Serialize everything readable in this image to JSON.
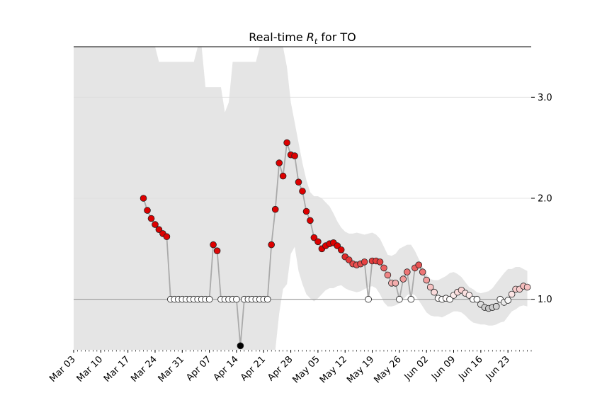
{
  "chart_data": {
    "type": "scatter",
    "title_main": "Real-time ",
    "title_symbol": "R",
    "title_subscript": "t",
    "title_suffix": " for TO",
    "xlabel": "",
    "ylabel": "",
    "ylim": [
      0.5,
      3.5
    ],
    "y_ticks": [
      1.0,
      2.0,
      3.0
    ],
    "y_tick_labels": [
      "1.0",
      "2.0",
      "3.0"
    ],
    "y_axis_position": "right",
    "grid": "horizontal",
    "reference_line": 1.0,
    "x_start": "2020-03-03",
    "x_end": "2020-06-29",
    "x_tick_labels": [
      "Mar 03",
      "Mar 10",
      "Mar 17",
      "Mar 24",
      "Mar 31",
      "Apr 07",
      "Apr 14",
      "Apr 21",
      "Apr 28",
      "May 05",
      "May 12",
      "May 19",
      "May 26",
      "Jun 02",
      "Jun 09",
      "Jun 16",
      "Jun 23"
    ],
    "x_tick_dates": [
      "2020-03-03",
      "2020-03-10",
      "2020-03-17",
      "2020-03-24",
      "2020-03-31",
      "2020-04-07",
      "2020-04-14",
      "2020-04-21",
      "2020-04-28",
      "2020-05-05",
      "2020-05-12",
      "2020-05-19",
      "2020-05-26",
      "2020-06-02",
      "2020-06-09",
      "2020-06-16",
      "2020-06-23"
    ],
    "colors": {
      "band": "#e5e5e5",
      "line": "#aaaaaa",
      "high": "#dd0000",
      "neutral": "#ffffff",
      "low": "#000000",
      "grid": "#dddddd",
      "reference": "#999999"
    },
    "series": [
      {
        "start_date": "2020-03-21",
        "values": [
          2.0,
          1.88,
          1.8,
          1.74,
          1.69,
          1.65,
          1.62,
          1.0,
          1.0,
          1.0,
          1.0,
          1.0,
          1.0,
          1.0,
          1.0,
          1.0,
          1.0,
          1.0,
          1.54,
          1.48,
          1.0,
          1.0,
          1.0,
          1.0,
          1.0,
          0.54,
          1.0,
          1.0,
          1.0,
          1.0,
          1.0,
          1.0,
          1.0,
          1.54,
          1.89,
          2.35,
          2.22,
          2.55,
          2.43,
          2.42,
          2.16,
          2.07,
          1.87,
          1.78,
          1.61,
          1.57,
          1.5,
          1.53,
          1.55,
          1.56,
          1.53,
          1.49,
          1.42,
          1.39,
          1.35,
          1.34,
          1.35,
          1.37,
          1.0,
          1.38,
          1.38,
          1.37,
          1.31,
          1.24,
          1.16,
          1.16,
          1.0,
          1.2,
          1.27,
          1.0,
          1.31,
          1.34,
          1.27,
          1.19,
          1.12,
          1.07,
          1.01,
          1.0,
          1.01,
          1.0,
          1.04,
          1.07,
          1.09,
          1.06,
          1.04,
          1.0,
          1.0,
          0.95,
          0.92,
          0.91,
          0.92,
          0.93,
          1.0,
          0.97,
          0.99,
          1.05,
          1.1,
          1.1,
          1.13,
          1.12
        ],
        "colors_scale": "diverging",
        "gaps_before": []
      }
    ],
    "band_upper": [
      [
        "2020-03-03",
        3.5
      ],
      [
        "2020-03-24",
        3.5
      ],
      [
        "2020-03-25",
        3.35
      ],
      [
        "2020-04-03",
        3.35
      ],
      [
        "2020-04-04",
        3.5
      ],
      [
        "2020-04-05",
        3.5
      ],
      [
        "2020-04-06",
        3.1
      ],
      [
        "2020-04-10",
        3.1
      ],
      [
        "2020-04-11",
        2.85
      ],
      [
        "2020-04-12",
        2.95
      ],
      [
        "2020-04-13",
        3.35
      ],
      [
        "2020-04-19",
        3.35
      ],
      [
        "2020-04-20",
        3.5
      ],
      [
        "2020-04-26",
        3.5
      ],
      [
        "2020-04-27",
        3.3
      ],
      [
        "2020-04-28",
        2.95
      ],
      [
        "2020-04-29",
        2.75
      ],
      [
        "2020-04-30",
        2.55
      ],
      [
        "2020-05-01",
        2.35
      ],
      [
        "2020-05-02",
        2.18
      ],
      [
        "2020-05-03",
        2.06
      ],
      [
        "2020-05-04",
        2.02
      ],
      [
        "2020-05-05",
        2.02
      ],
      [
        "2020-05-06",
        2.0
      ],
      [
        "2020-05-07",
        1.96
      ],
      [
        "2020-05-08",
        1.92
      ],
      [
        "2020-05-09",
        1.85
      ],
      [
        "2020-05-10",
        1.77
      ],
      [
        "2020-05-11",
        1.71
      ],
      [
        "2020-05-12",
        1.67
      ],
      [
        "2020-05-13",
        1.65
      ],
      [
        "2020-05-14",
        1.65
      ],
      [
        "2020-05-15",
        1.66
      ],
      [
        "2020-05-16",
        1.65
      ],
      [
        "2020-05-17",
        1.64
      ],
      [
        "2020-05-18",
        1.65
      ],
      [
        "2020-05-19",
        1.66
      ],
      [
        "2020-05-20",
        1.64
      ],
      [
        "2020-05-21",
        1.6
      ],
      [
        "2020-05-22",
        1.52
      ],
      [
        "2020-05-23",
        1.44
      ],
      [
        "2020-05-24",
        1.43
      ],
      [
        "2020-05-25",
        1.45
      ],
      [
        "2020-05-26",
        1.5
      ],
      [
        "2020-05-27",
        1.52
      ],
      [
        "2020-05-28",
        1.54
      ],
      [
        "2020-05-29",
        1.54
      ],
      [
        "2020-05-30",
        1.48
      ],
      [
        "2020-05-31",
        1.4
      ],
      [
        "2020-06-01",
        1.32
      ],
      [
        "2020-06-02",
        1.25
      ],
      [
        "2020-06-03",
        1.2
      ],
      [
        "2020-06-04",
        1.19
      ],
      [
        "2020-06-05",
        1.19
      ],
      [
        "2020-06-06",
        1.21
      ],
      [
        "2020-06-07",
        1.23
      ],
      [
        "2020-06-08",
        1.26
      ],
      [
        "2020-06-09",
        1.27
      ],
      [
        "2020-06-10",
        1.25
      ],
      [
        "2020-06-11",
        1.22
      ],
      [
        "2020-06-12",
        1.17
      ],
      [
        "2020-06-13",
        1.12
      ],
      [
        "2020-06-14",
        1.1
      ],
      [
        "2020-06-15",
        1.07
      ],
      [
        "2020-06-16",
        1.06
      ],
      [
        "2020-06-17",
        1.07
      ],
      [
        "2020-06-18",
        1.08
      ],
      [
        "2020-06-19",
        1.11
      ],
      [
        "2020-06-20",
        1.16
      ],
      [
        "2020-06-21",
        1.21
      ],
      [
        "2020-06-22",
        1.26
      ],
      [
        "2020-06-23",
        1.3
      ],
      [
        "2020-06-24",
        1.3
      ],
      [
        "2020-06-25",
        1.32
      ],
      [
        "2020-06-26",
        1.32
      ],
      [
        "2020-06-27",
        1.3
      ],
      [
        "2020-06-28",
        1.28
      ]
    ],
    "band_lower": [
      [
        "2020-03-03",
        0.5
      ],
      [
        "2020-04-24",
        0.5
      ],
      [
        "2020-04-25",
        0.86
      ],
      [
        "2020-04-26",
        1.1
      ],
      [
        "2020-04-27",
        1.15
      ],
      [
        "2020-04-28",
        1.45
      ],
      [
        "2020-04-29",
        1.52
      ],
      [
        "2020-04-30",
        1.28
      ],
      [
        "2020-05-01",
        1.15
      ],
      [
        "2020-05-02",
        1.05
      ],
      [
        "2020-05-03",
        1.01
      ],
      [
        "2020-05-04",
        0.98
      ],
      [
        "2020-05-05",
        1.01
      ],
      [
        "2020-05-06",
        1.05
      ],
      [
        "2020-05-07",
        1.09
      ],
      [
        "2020-05-08",
        1.11
      ],
      [
        "2020-05-09",
        1.11
      ],
      [
        "2020-05-10",
        1.13
      ],
      [
        "2020-05-11",
        1.14
      ],
      [
        "2020-05-12",
        1.11
      ],
      [
        "2020-05-13",
        1.09
      ],
      [
        "2020-05-14",
        1.08
      ],
      [
        "2020-05-15",
        1.07
      ],
      [
        "2020-05-16",
        1.08
      ],
      [
        "2020-05-17",
        1.1
      ],
      [
        "2020-05-18",
        1.12
      ],
      [
        "2020-05-19",
        1.13
      ],
      [
        "2020-05-20",
        1.11
      ],
      [
        "2020-05-21",
        1.05
      ],
      [
        "2020-05-22",
        0.97
      ],
      [
        "2020-05-23",
        0.93
      ],
      [
        "2020-05-24",
        0.93
      ],
      [
        "2020-05-25",
        0.94
      ],
      [
        "2020-05-26",
        0.96
      ],
      [
        "2020-05-27",
        1.0
      ],
      [
        "2020-05-28",
        1.04
      ],
      [
        "2020-05-29",
        1.06
      ],
      [
        "2020-05-30",
        1.04
      ],
      [
        "2020-05-31",
        0.99
      ],
      [
        "2020-06-01",
        0.93
      ],
      [
        "2020-06-02",
        0.87
      ],
      [
        "2020-06-03",
        0.84
      ],
      [
        "2020-06-04",
        0.83
      ],
      [
        "2020-06-05",
        0.83
      ],
      [
        "2020-06-06",
        0.82
      ],
      [
        "2020-06-07",
        0.84
      ],
      [
        "2020-06-08",
        0.86
      ],
      [
        "2020-06-09",
        0.88
      ],
      [
        "2020-06-10",
        0.88
      ],
      [
        "2020-06-11",
        0.87
      ],
      [
        "2020-06-12",
        0.84
      ],
      [
        "2020-06-13",
        0.8
      ],
      [
        "2020-06-14",
        0.77
      ],
      [
        "2020-06-15",
        0.76
      ],
      [
        "2020-06-16",
        0.75
      ],
      [
        "2020-06-17",
        0.75
      ],
      [
        "2020-06-18",
        0.74
      ],
      [
        "2020-06-19",
        0.74
      ],
      [
        "2020-06-20",
        0.75
      ],
      [
        "2020-06-21",
        0.77
      ],
      [
        "2020-06-22",
        0.78
      ],
      [
        "2020-06-23",
        0.83
      ],
      [
        "2020-06-24",
        0.88
      ],
      [
        "2020-06-25",
        0.9
      ],
      [
        "2020-06-26",
        0.93
      ],
      [
        "2020-06-27",
        0.94
      ],
      [
        "2020-06-28",
        0.93
      ]
    ]
  }
}
